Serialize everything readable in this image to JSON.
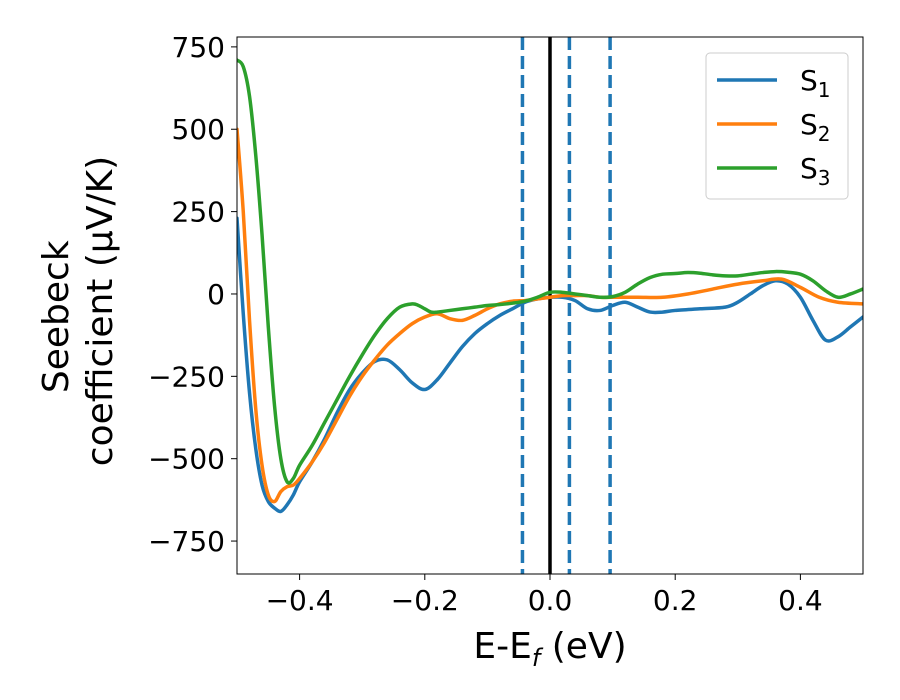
{
  "chart_data": {
    "type": "line",
    "xlabel": {
      "main": "E-E",
      "sub": "f",
      "unit": " (eV)"
    },
    "ylabel": {
      "line1": "Seebeck",
      "line2": "coefficient  (μV/K)"
    },
    "xlim": [
      -0.5,
      0.5
    ],
    "ylim": [
      -850,
      780
    ],
    "xticks": [
      -0.4,
      -0.2,
      0.0,
      0.2,
      0.4
    ],
    "xtick_labels": [
      "−0.4",
      "−0.2",
      "0.0",
      "0.2",
      "0.4"
    ],
    "yticks": [
      750,
      500,
      250,
      0,
      -250,
      -500,
      -750
    ],
    "ytick_labels": [
      "750",
      "500",
      "250",
      "0",
      "−250",
      "−500",
      "−750"
    ],
    "legend_position": "top-right",
    "vertical_lines": [
      {
        "x": -0.044,
        "style": "dashed",
        "color": "#1f77b4"
      },
      {
        "x": 0.0,
        "style": "solid",
        "color": "#000000"
      },
      {
        "x": 0.031,
        "style": "dashed",
        "color": "#1f77b4"
      },
      {
        "x": 0.096,
        "style": "dashed",
        "color": "#1f77b4"
      }
    ],
    "series": [
      {
        "name": "S",
        "subscript": "1",
        "color": "#1f77b4",
        "x": [
          -0.5,
          -0.49,
          -0.48,
          -0.47,
          -0.46,
          -0.45,
          -0.44,
          -0.43,
          -0.42,
          -0.41,
          -0.4,
          -0.38,
          -0.36,
          -0.34,
          -0.32,
          -0.3,
          -0.28,
          -0.26,
          -0.24,
          -0.22,
          -0.2,
          -0.18,
          -0.16,
          -0.14,
          -0.12,
          -0.1,
          -0.08,
          -0.06,
          -0.04,
          -0.02,
          0.0,
          0.02,
          0.04,
          0.06,
          0.08,
          0.1,
          0.12,
          0.14,
          0.16,
          0.18,
          0.2,
          0.24,
          0.28,
          0.3,
          0.32,
          0.34,
          0.36,
          0.38,
          0.4,
          0.42,
          0.44,
          0.46,
          0.48,
          0.5
        ],
        "y": [
          230,
          -60,
          -300,
          -470,
          -580,
          -630,
          -650,
          -660,
          -640,
          -610,
          -570,
          -510,
          -440,
          -360,
          -290,
          -240,
          -205,
          -200,
          -230,
          -270,
          -290,
          -260,
          -210,
          -160,
          -120,
          -90,
          -65,
          -45,
          -25,
          -15,
          -10,
          -10,
          -20,
          -45,
          -50,
          -35,
          -25,
          -40,
          -55,
          -55,
          -50,
          -45,
          -40,
          -25,
          0,
          25,
          40,
          30,
          -10,
          -80,
          -140,
          -130,
          -100,
          -70
        ]
      },
      {
        "name": "S",
        "subscript": "2",
        "color": "#ff7f0e",
        "x": [
          -0.5,
          -0.49,
          -0.48,
          -0.47,
          -0.46,
          -0.45,
          -0.44,
          -0.43,
          -0.42,
          -0.41,
          -0.4,
          -0.38,
          -0.36,
          -0.34,
          -0.32,
          -0.3,
          -0.28,
          -0.26,
          -0.24,
          -0.22,
          -0.2,
          -0.18,
          -0.16,
          -0.14,
          -0.12,
          -0.1,
          -0.08,
          -0.06,
          -0.04,
          -0.02,
          0.0,
          0.02,
          0.04,
          0.06,
          0.08,
          0.1,
          0.14,
          0.18,
          0.22,
          0.26,
          0.3,
          0.34,
          0.37,
          0.4,
          0.43,
          0.46,
          0.5
        ],
        "y": [
          500,
          250,
          -80,
          -350,
          -520,
          -610,
          -630,
          -600,
          -585,
          -580,
          -560,
          -510,
          -450,
          -380,
          -310,
          -250,
          -200,
          -155,
          -120,
          -90,
          -70,
          -60,
          -75,
          -80,
          -65,
          -45,
          -30,
          -22,
          -20,
          -15,
          -10,
          -5,
          -5,
          -5,
          -10,
          -10,
          -10,
          -10,
          0,
          15,
          30,
          40,
          45,
          20,
          -10,
          -25,
          -30
        ]
      },
      {
        "name": "S",
        "subscript": "3",
        "color": "#2ca02c",
        "x": [
          -0.5,
          -0.49,
          -0.48,
          -0.47,
          -0.46,
          -0.45,
          -0.44,
          -0.43,
          -0.42,
          -0.41,
          -0.4,
          -0.38,
          -0.36,
          -0.34,
          -0.32,
          -0.3,
          -0.28,
          -0.26,
          -0.24,
          -0.22,
          -0.21,
          -0.2,
          -0.19,
          -0.18,
          -0.16,
          -0.14,
          -0.12,
          -0.1,
          -0.08,
          -0.06,
          -0.04,
          -0.02,
          0.0,
          0.02,
          0.04,
          0.06,
          0.08,
          0.1,
          0.12,
          0.14,
          0.16,
          0.18,
          0.2,
          0.22,
          0.24,
          0.26,
          0.28,
          0.3,
          0.32,
          0.34,
          0.36,
          0.38,
          0.4,
          0.42,
          0.44,
          0.46,
          0.48,
          0.5
        ],
        "y": [
          710,
          690,
          600,
          420,
          180,
          -100,
          -340,
          -500,
          -570,
          -560,
          -520,
          -460,
          -390,
          -320,
          -250,
          -185,
          -125,
          -75,
          -40,
          -30,
          -35,
          -45,
          -55,
          -55,
          -50,
          -45,
          -40,
          -35,
          -32,
          -28,
          -22,
          -10,
          5,
          5,
          0,
          -5,
          -10,
          -8,
          5,
          30,
          50,
          60,
          62,
          65,
          63,
          58,
          55,
          55,
          60,
          65,
          68,
          66,
          60,
          40,
          10,
          -10,
          0,
          15
        ]
      }
    ]
  }
}
